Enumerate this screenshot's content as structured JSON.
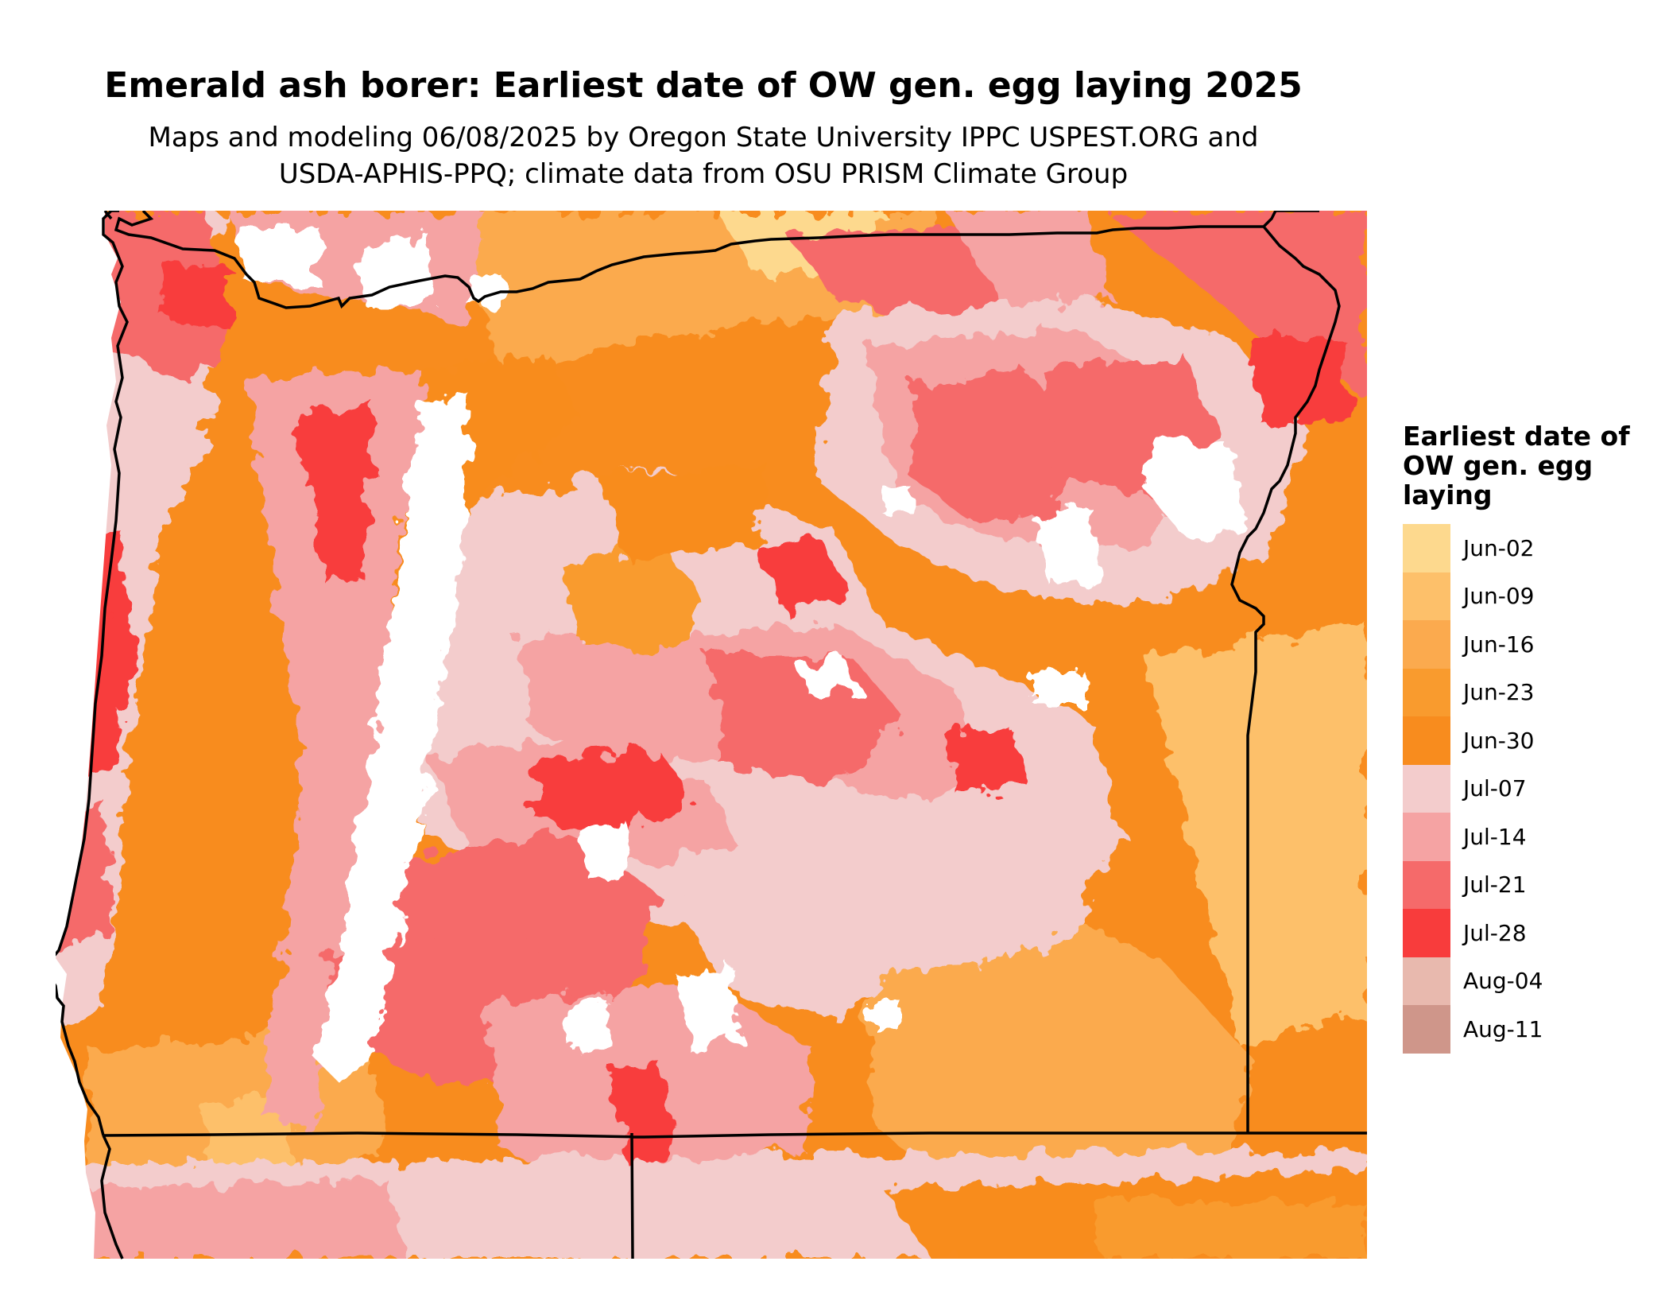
{
  "title": "Emerald ash borer: Earliest date of OW gen. egg laying 2025",
  "subtitle_line1": "Maps and modeling 06/08/2025 by Oregon State University IPPC USPEST.ORG and",
  "subtitle_line2": "USDA-APHIS-PPQ; climate data from OSU PRISM Climate Group",
  "legend": {
    "title": "Earliest date of OW gen. egg laying",
    "items": [
      {
        "label": "Jun-02",
        "color": "#FDD98E"
      },
      {
        "label": "Jun-09",
        "color": "#FDC06A"
      },
      {
        "label": "Jun-16",
        "color": "#FBAA4E"
      },
      {
        "label": "Jun-23",
        "color": "#F99B2E"
      },
      {
        "label": "Jun-30",
        "color": "#F88C1E"
      },
      {
        "label": "Jul-07",
        "color": "#F3CCCC"
      },
      {
        "label": "Jul-14",
        "color": "#F5A3A3"
      },
      {
        "label": "Jul-21",
        "color": "#F56A6A"
      },
      {
        "label": "Jul-28",
        "color": "#F83C3C"
      },
      {
        "label": "Aug-04",
        "color": "#E8B9AE"
      },
      {
        "label": "Aug-11",
        "color": "#CF968A"
      }
    ]
  }
}
